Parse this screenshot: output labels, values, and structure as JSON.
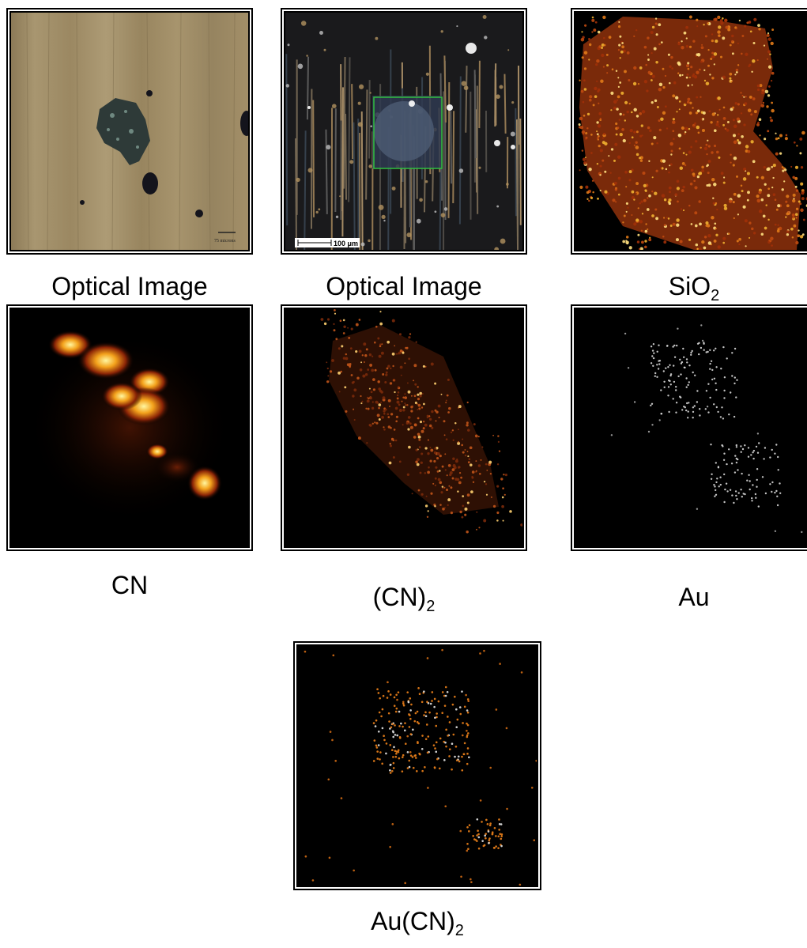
{
  "figure": {
    "panels": [
      {
        "key": "optical1",
        "image": "optical microscope image of dark particle on brown scratched surface",
        "scale_bar": "75 microns"
      },
      {
        "key": "optical2",
        "image": "optical microscope image with green selection box over particle",
        "scale_bar": "100 μm"
      },
      {
        "key": "sio2",
        "image": "SiO2 ion map, orange-red speckle",
        "scale_bar": ""
      },
      {
        "key": "cn",
        "image": "CN ion map, orange-yellow blobs",
        "scale_bar": ""
      },
      {
        "key": "cn2",
        "image": "(CN)2 ion map, faint orange speckle",
        "scale_bar": ""
      },
      {
        "key": "au",
        "image": "Au ion map, sparse grey dots",
        "scale_bar": ""
      },
      {
        "key": "aucn2",
        "image": "Au(CN)2 ion map, orange and grey dots",
        "scale_bar": ""
      }
    ],
    "captions": {
      "optical1": {
        "base": "Optical Image",
        "sub": "",
        "rest": ""
      },
      "optical2": {
        "base": "Optical Image",
        "sub": "",
        "rest": ""
      },
      "sio2": {
        "base": "SiO",
        "sub": "2",
        "rest": ""
      },
      "cn": {
        "base": "CN",
        "sub": "",
        "rest": ""
      },
      "cn2": {
        "base": "(CN)",
        "sub": "2",
        "rest": ""
      },
      "au": {
        "base": "Au",
        "sub": "",
        "rest": ""
      },
      "aucn2": {
        "base": "Au(CN)",
        "sub": "2",
        "rest": ""
      }
    },
    "colors": {
      "optical_bg": "#a08d67",
      "map_bg": "#000000",
      "selection_box": "#2fbf3f",
      "ion_orange": "#e07a18",
      "ion_grey": "#d8d8d8"
    }
  }
}
